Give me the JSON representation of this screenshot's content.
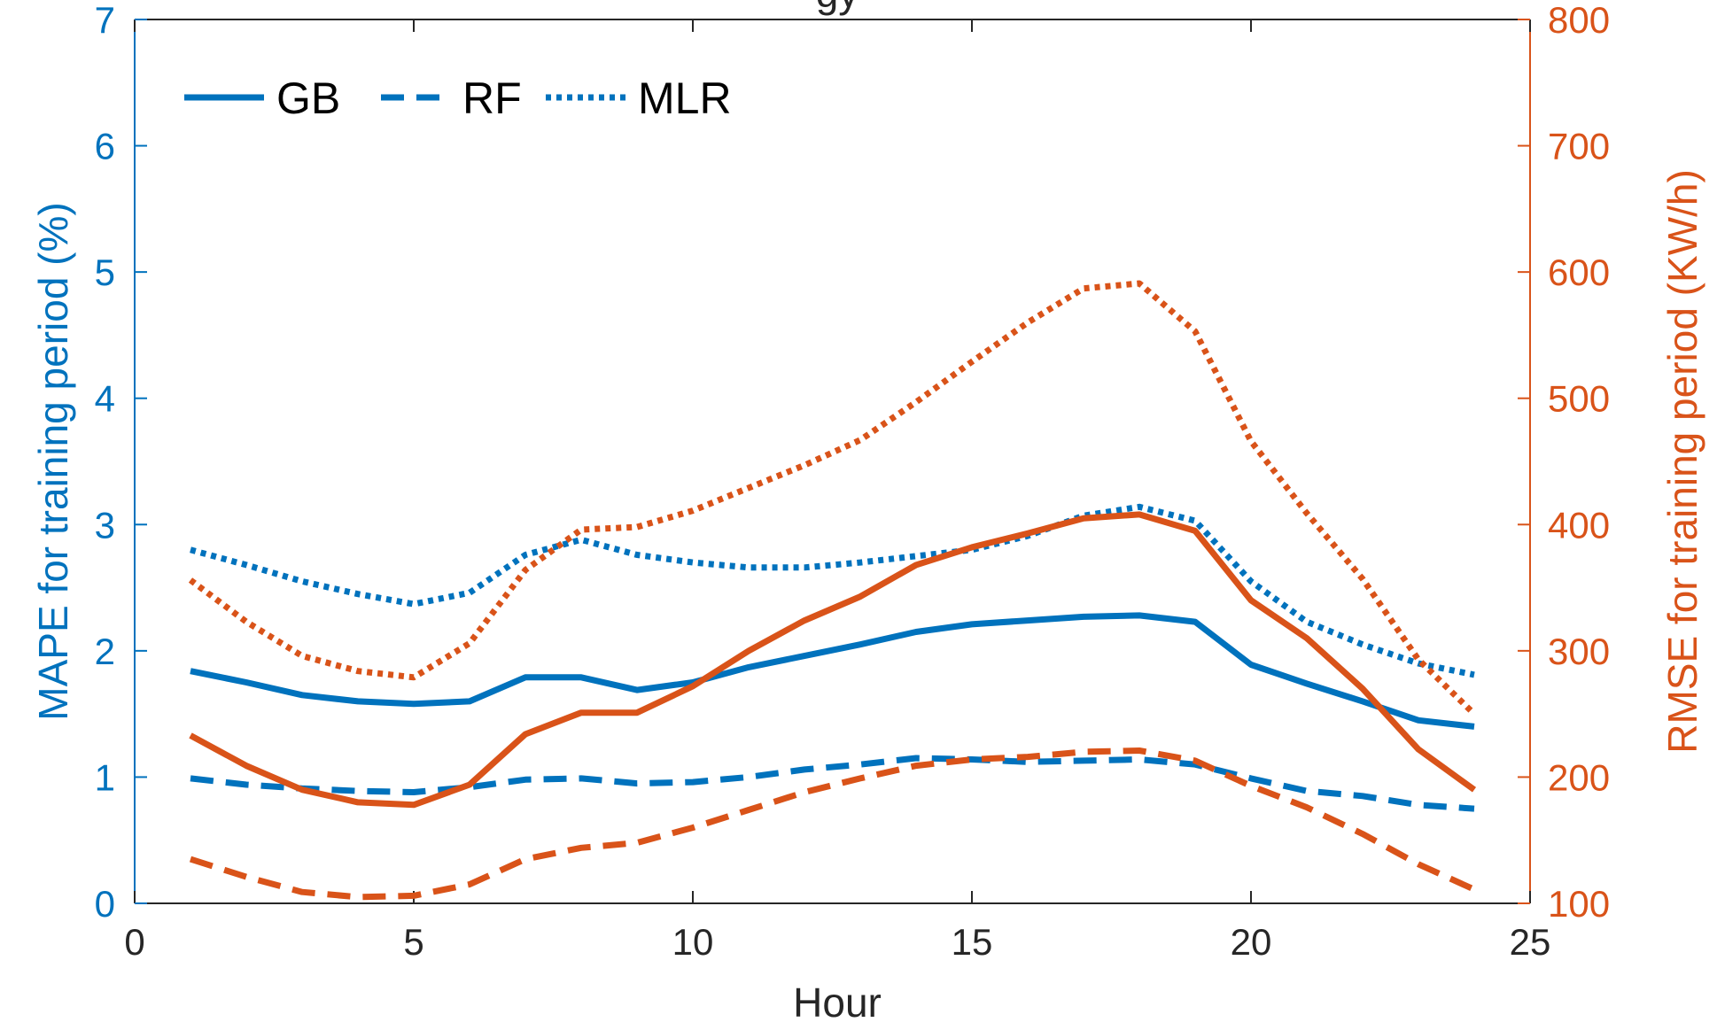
{
  "chart_data": {
    "type": "line",
    "title_visible_fragment": "gy",
    "xlabel": "Hour",
    "ylabel_left": "MAPE for training period (%)",
    "ylabel_right": "RMSE for training period (KW/h)",
    "xlim": [
      0,
      25
    ],
    "ylim_left": [
      0,
      7
    ],
    "ylim_right": [
      100,
      800
    ],
    "xticks": [
      "0",
      "5",
      "10",
      "15",
      "20",
      "25"
    ],
    "yticks_left": [
      "0",
      "1",
      "2",
      "3",
      "4",
      "5",
      "6",
      "7"
    ],
    "yticks_right": [
      "100",
      "200",
      "300",
      "400",
      "500",
      "600",
      "700",
      "800"
    ],
    "grid": false,
    "legend_position": "top-left",
    "legend": [
      {
        "label": "GB",
        "style": "solid"
      },
      {
        "label": "RF",
        "style": "dashed"
      },
      {
        "label": "MLR",
        "style": "dotted"
      }
    ],
    "colors": {
      "left_axis": "#0072BD",
      "right_axis": "#D95319",
      "x_axis": "#262626"
    },
    "x": [
      1,
      2,
      3,
      4,
      5,
      6,
      7,
      8,
      9,
      10,
      11,
      12,
      13,
      14,
      15,
      16,
      17,
      18,
      19,
      20,
      21,
      22,
      23,
      24
    ],
    "series": [
      {
        "name": "GB",
        "metric": "MAPE",
        "axis": "left",
        "style": "solid",
        "values": [
          1.84,
          1.75,
          1.65,
          1.6,
          1.58,
          1.6,
          1.79,
          1.79,
          1.69,
          1.75,
          1.87,
          1.96,
          2.05,
          2.15,
          2.21,
          2.24,
          2.27,
          2.28,
          2.23,
          1.89,
          1.74,
          1.6,
          1.45,
          1.4
        ]
      },
      {
        "name": "RF",
        "metric": "MAPE",
        "axis": "left",
        "style": "dashed",
        "values": [
          0.99,
          0.94,
          0.91,
          0.89,
          0.88,
          0.92,
          0.98,
          0.99,
          0.95,
          0.96,
          1.0,
          1.06,
          1.1,
          1.15,
          1.14,
          1.12,
          1.13,
          1.14,
          1.1,
          0.99,
          0.89,
          0.85,
          0.78,
          0.75
        ]
      },
      {
        "name": "MLR",
        "metric": "MAPE",
        "axis": "left",
        "style": "dotted",
        "values": [
          2.8,
          2.68,
          2.55,
          2.45,
          2.37,
          2.46,
          2.76,
          2.88,
          2.76,
          2.7,
          2.66,
          2.66,
          2.7,
          2.75,
          2.8,
          2.91,
          3.07,
          3.14,
          3.03,
          2.55,
          2.23,
          2.05,
          1.9,
          1.81
        ]
      },
      {
        "name": "GB",
        "metric": "RMSE",
        "axis": "right",
        "style": "solid",
        "values": [
          233,
          209,
          190,
          180,
          178,
          194,
          234,
          251,
          251,
          272,
          300,
          324,
          343,
          368,
          382,
          393,
          405,
          408,
          395,
          340,
          310,
          270,
          222,
          190
        ]
      },
      {
        "name": "RF",
        "metric": "RMSE",
        "axis": "right",
        "style": "dashed",
        "values": [
          135,
          121,
          109,
          105,
          106,
          115,
          135,
          144,
          148,
          160,
          174,
          188,
          199,
          209,
          214,
          216,
          220,
          221,
          213,
          193,
          176,
          155,
          131,
          111
        ]
      },
      {
        "name": "MLR",
        "metric": "RMSE",
        "axis": "right",
        "style": "dotted",
        "values": [
          356,
          323,
          296,
          284,
          279,
          306,
          364,
          396,
          398,
          411,
          429,
          447,
          467,
          497,
          529,
          560,
          587,
          591,
          553,
          466,
          409,
          357,
          293,
          250
        ]
      }
    ]
  }
}
